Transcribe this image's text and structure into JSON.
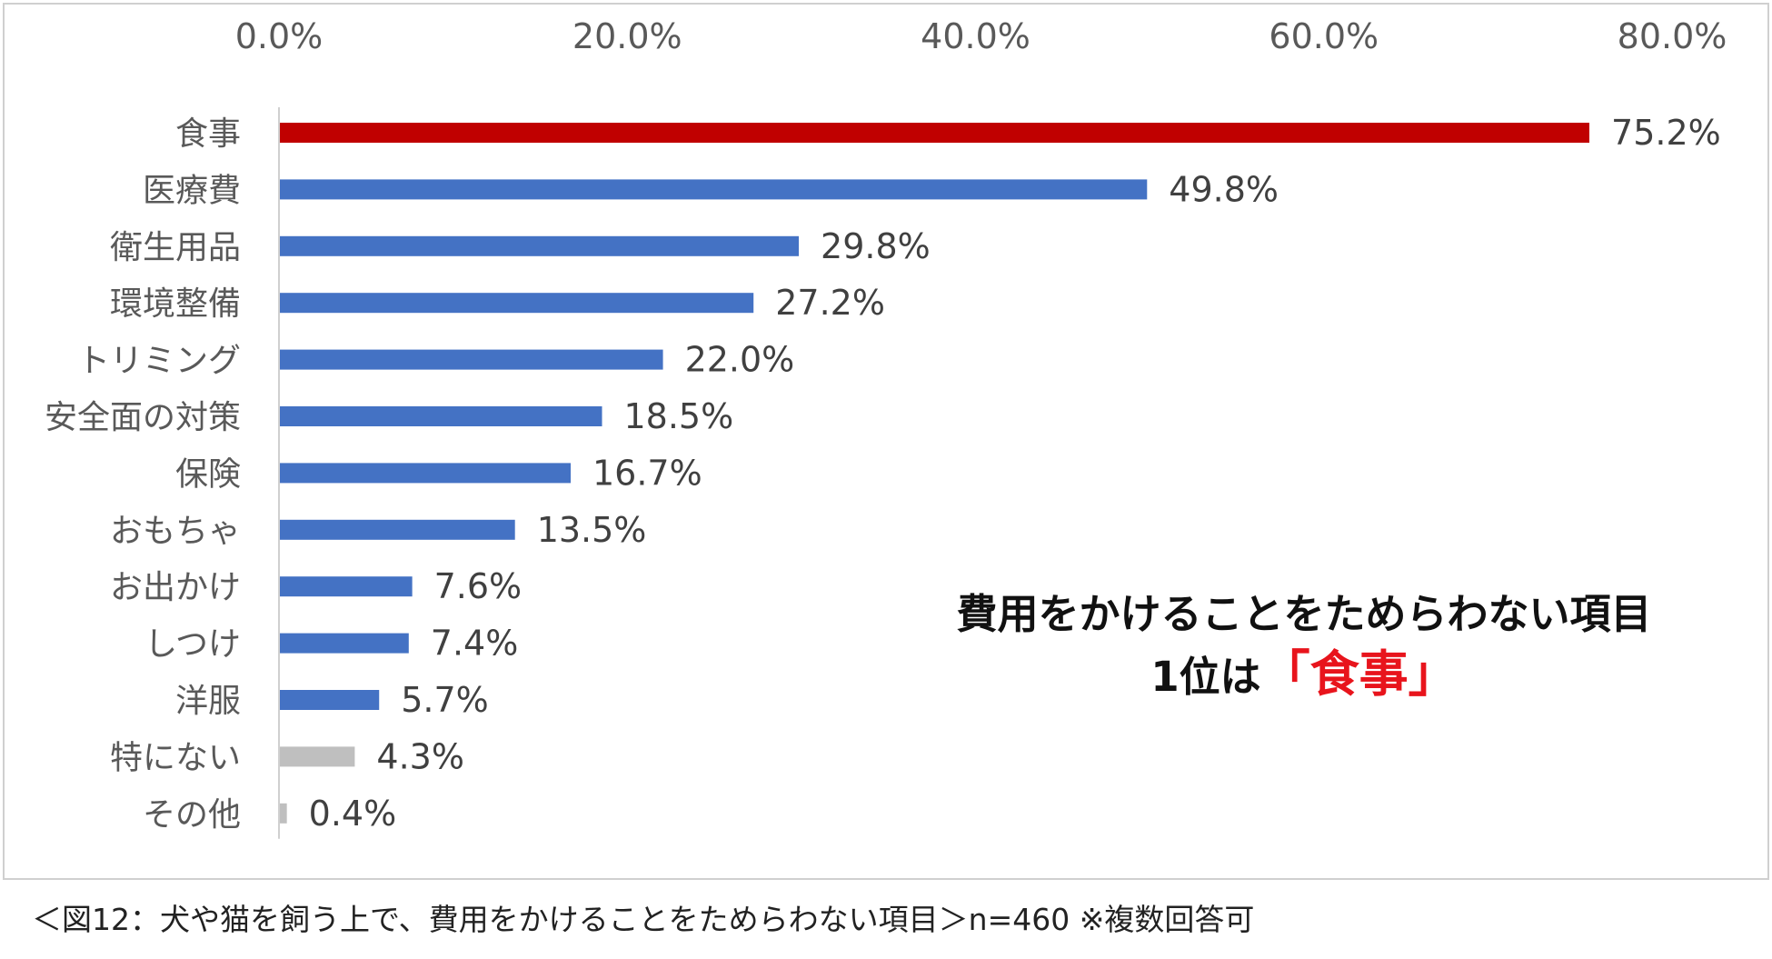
{
  "chart_data": {
    "type": "bar",
    "orientation": "horizontal",
    "categories": [
      "食事",
      "医療費",
      "衛生用品",
      "環境整備",
      "トリミング",
      "安全面の対策",
      "保険",
      "おもちゃ",
      "お出かけ",
      "しつけ",
      "洋服",
      "特にない",
      "その他"
    ],
    "values": [
      75.2,
      49.8,
      29.8,
      27.2,
      22.0,
      18.5,
      16.7,
      13.5,
      7.6,
      7.4,
      5.7,
      4.3,
      0.4
    ],
    "value_labels": [
      "75.2%",
      "49.8%",
      "29.8%",
      "27.2%",
      "22.0%",
      "18.5%",
      "16.7%",
      "13.5%",
      "7.6%",
      "7.4%",
      "5.7%",
      "4.3%",
      "0.4%"
    ],
    "bar_colors": [
      "#c00000",
      "#4472c4",
      "#4472c4",
      "#4472c4",
      "#4472c4",
      "#4472c4",
      "#4472c4",
      "#4472c4",
      "#4472c4",
      "#4472c4",
      "#4472c4",
      "#bfbfbf",
      "#bfbfbf"
    ],
    "xlim": [
      0,
      80
    ],
    "xticks": [
      0,
      20,
      40,
      60,
      80
    ],
    "xtick_labels": [
      "0.0%",
      "20.0%",
      "40.0%",
      "60.0%",
      "80.0%"
    ],
    "x_axis_position": "top",
    "grid": false
  },
  "headline": {
    "line1": "費用をかけることをためらわない項目",
    "rank": "1位は",
    "highlight": "「食事」"
  },
  "caption": "＜図12：犬や猫を飼う上で、費用をかけることをためらわない項目＞n=460 ※複数回答可"
}
